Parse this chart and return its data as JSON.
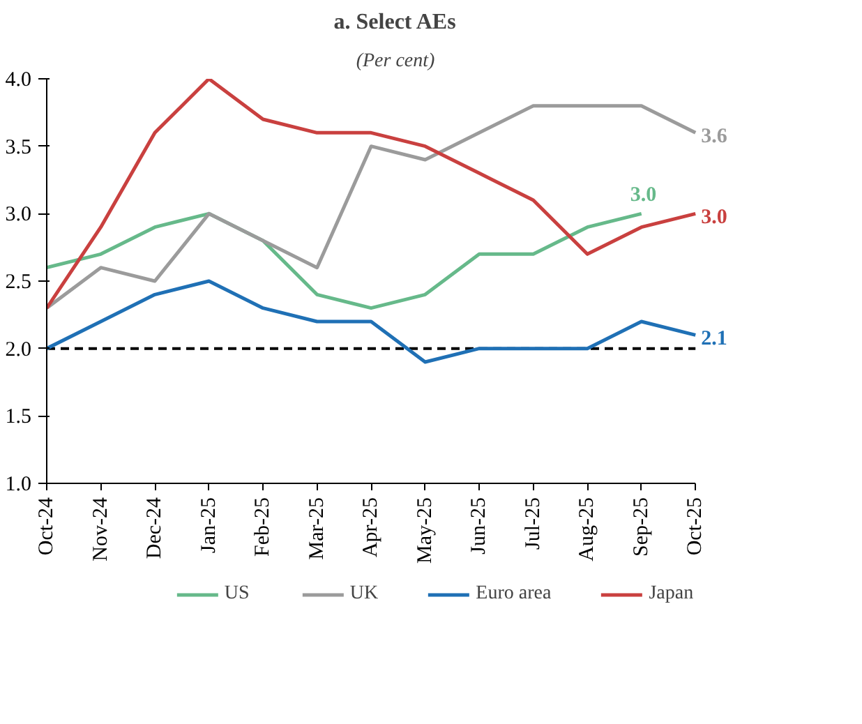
{
  "chart_data": {
    "type": "line",
    "title": "a. Select AEs",
    "subtitle": "(Per cent)",
    "categories": [
      "Oct-24",
      "Nov-24",
      "Dec-24",
      "Jan-25",
      "Feb-25",
      "Mar-25",
      "Apr-25",
      "May-25",
      "Jun-25",
      "Jul-25",
      "Aug-25",
      "Sep-25",
      "Oct-25"
    ],
    "series": [
      {
        "name": "US",
        "color": "#66b98a",
        "values": [
          2.6,
          2.7,
          2.9,
          3.0,
          2.8,
          2.4,
          2.3,
          2.4,
          2.7,
          2.7,
          2.9,
          3.0,
          null
        ],
        "value_labels": [
          null,
          null,
          null,
          null,
          null,
          null,
          null,
          null,
          null,
          null,
          null,
          "3.0",
          null
        ]
      },
      {
        "name": "UK",
        "color": "#9b9b9b",
        "values": [
          2.3,
          2.6,
          2.5,
          3.0,
          2.8,
          2.6,
          3.5,
          3.4,
          3.6,
          3.8,
          3.8,
          3.8,
          3.6
        ],
        "value_labels": [
          null,
          null,
          null,
          null,
          null,
          null,
          null,
          null,
          null,
          null,
          null,
          null,
          "3.6"
        ]
      },
      {
        "name": "Euro area",
        "color": "#1f70b5",
        "values": [
          2.0,
          2.2,
          2.4,
          2.5,
          2.3,
          2.2,
          2.2,
          1.9,
          2.0,
          2.0,
          2.0,
          2.2,
          2.1
        ],
        "value_labels": [
          null,
          null,
          null,
          null,
          null,
          null,
          null,
          null,
          null,
          null,
          null,
          null,
          "2.1"
        ]
      },
      {
        "name": "Japan",
        "color": "#c9403f",
        "values": [
          2.3,
          2.9,
          3.6,
          4.0,
          3.7,
          3.6,
          3.6,
          3.5,
          3.3,
          3.1,
          2.7,
          2.9,
          3.0
        ],
        "value_labels": [
          null,
          null,
          null,
          null,
          null,
          null,
          null,
          null,
          null,
          null,
          null,
          null,
          "3.0"
        ]
      }
    ],
    "ylim": [
      1.0,
      4.0
    ],
    "yticks": [
      {
        "value": 1.0,
        "label": "1.0"
      },
      {
        "value": 1.5,
        "label": "1.5"
      },
      {
        "value": 2.0,
        "label": "2.0"
      },
      {
        "value": 2.5,
        "label": "2.5"
      },
      {
        "value": 3.0,
        "label": "3.0"
      },
      {
        "value": 3.5,
        "label": "3.5"
      },
      {
        "value": 4.0,
        "label": "4.0"
      }
    ],
    "ref_lines": [
      {
        "axis": "y",
        "value": 2.0,
        "color": "#000000",
        "line_style": "dashed"
      }
    ],
    "grid": false,
    "legend": "bottom",
    "line_style": "solid",
    "marker": "none"
  }
}
